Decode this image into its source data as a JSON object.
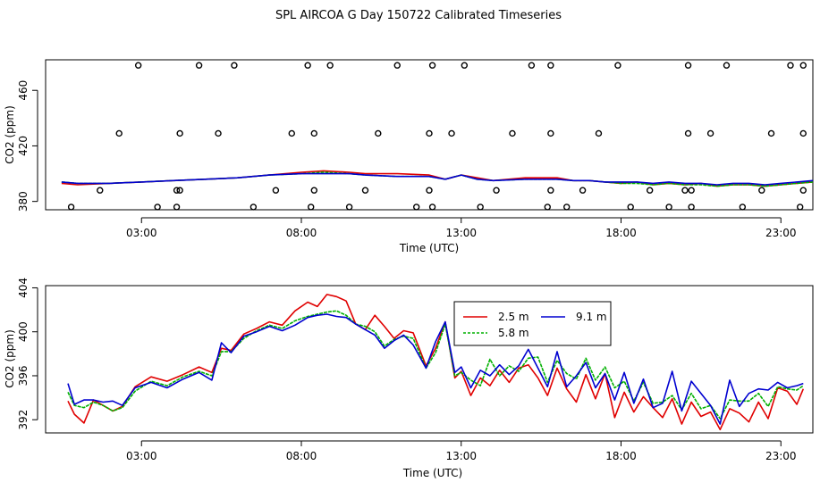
{
  "title": "SPL AIRCOA G  Day 150722  Calibrated Timeseries",
  "chart_data": [
    {
      "type": "line",
      "panel": "top",
      "xlabel": "Time (UTC)",
      "ylabel": "CO2 (ppm)",
      "xlim": [
        0,
        24
      ],
      "ylim": [
        374,
        482
      ],
      "xticks": [
        3,
        8,
        13,
        18,
        23
      ],
      "xtick_labels": [
        "03:00",
        "08:00",
        "13:00",
        "18:00",
        "23:00"
      ],
      "yticks": [
        380,
        420,
        460
      ],
      "ytick_labels": [
        "380",
        "420",
        "460"
      ],
      "series": [
        {
          "color": "#e00000",
          "x": [
            0.5,
            1,
            2,
            3,
            4,
            5,
            6,
            7,
            8,
            8.7,
            9.5,
            10,
            11,
            12,
            12.5,
            13,
            13.5,
            14,
            15,
            16,
            16.5,
            17,
            17.5,
            18,
            18.5,
            19,
            19.5,
            20,
            20.5,
            21,
            21.5,
            22,
            22.5,
            23,
            23.5,
            24
          ],
          "y": [
            393,
            392,
            393,
            394,
            395,
            396,
            397,
            399,
            401,
            402,
            401,
            400,
            400,
            399,
            396,
            399,
            397,
            395,
            397,
            397,
            395,
            395,
            394,
            393,
            394,
            392,
            393,
            392,
            393,
            391,
            392,
            392,
            391,
            392,
            393,
            394
          ]
        },
        {
          "color": "#00b000",
          "x": [
            0.5,
            1,
            2,
            3,
            4,
            5,
            6,
            7,
            8,
            8.7,
            9.5,
            10,
            11,
            12,
            12.5,
            13,
            13.5,
            14,
            15,
            16,
            16.5,
            17,
            17.5,
            18,
            18.5,
            19,
            19.5,
            20,
            20.5,
            21,
            21.5,
            22,
            22.5,
            23,
            23.5,
            24
          ],
          "y": [
            394,
            393,
            393,
            394,
            395,
            396,
            397,
            399,
            400,
            401,
            400,
            399,
            398,
            398,
            396,
            399,
            396,
            395,
            396,
            396,
            395,
            395,
            394,
            393,
            393,
            392,
            393,
            392,
            392,
            391,
            392,
            392,
            391,
            392,
            393,
            394
          ]
        },
        {
          "color": "#0000d0",
          "x": [
            0.5,
            1,
            2,
            3,
            4,
            5,
            6,
            7,
            8,
            8.7,
            9.5,
            10,
            11,
            12,
            12.5,
            13,
            13.5,
            14,
            15,
            16,
            16.5,
            17,
            17.5,
            18,
            18.5,
            19,
            19.5,
            20,
            20.5,
            21,
            21.5,
            22,
            22.5,
            23,
            23.5,
            24
          ],
          "y": [
            394,
            393,
            393,
            394,
            395,
            396,
            397,
            399,
            400,
            400,
            400,
            399,
            398,
            398,
            396,
            399,
            396,
            395,
            396,
            396,
            395,
            395,
            394,
            394,
            394,
            393,
            394,
            393,
            393,
            392,
            393,
            393,
            392,
            393,
            394,
            395
          ]
        }
      ],
      "points": {
        "marker": "open-circle",
        "x": [
          0.8,
          1.7,
          2.3,
          2.9,
          3.5,
          4.1,
          4.1,
          4.2,
          4.2,
          4.8,
          5.4,
          5.9,
          6.5,
          7.2,
          7.7,
          8.2,
          8.3,
          8.4,
          8.4,
          8.9,
          9.5,
          10.0,
          10.4,
          11.0,
          11.6,
          12.0,
          12.0,
          12.1,
          12.1,
          12.7,
          13.1,
          13.6,
          14.1,
          14.6,
          15.2,
          15.7,
          15.8,
          15.8,
          15.8,
          16.3,
          16.8,
          17.3,
          17.9,
          18.3,
          18.9,
          19.5,
          20.0,
          20.1,
          20.1,
          20.2,
          20.2,
          20.8,
          21.3,
          21.8,
          22.4,
          22.7,
          23.3,
          23.6,
          23.7,
          23.7,
          23.7
        ],
        "y": [
          376,
          388,
          429,
          478,
          376,
          388,
          376,
          388,
          429,
          478,
          429,
          478,
          376,
          388,
          429,
          478,
          376,
          388,
          429,
          478,
          376,
          388,
          429,
          478,
          376,
          388,
          429,
          478,
          376,
          429,
          478,
          376,
          388,
          429,
          478,
          376,
          388,
          429,
          478,
          376,
          388,
          429,
          478,
          376,
          388,
          376,
          388,
          429,
          478,
          376,
          388,
          429,
          478,
          376,
          388,
          429,
          478,
          376,
          388,
          429,
          478
        ]
      }
    },
    {
      "type": "line",
      "panel": "bottom",
      "xlabel": "Time (UTC)",
      "ylabel": "CO2 (ppm)",
      "xlim": [
        0,
        24
      ],
      "ylim": [
        390.8,
        404.2
      ],
      "xticks": [
        3,
        8,
        13,
        18,
        23
      ],
      "xtick_labels": [
        "03:00",
        "08:00",
        "13:00",
        "18:00",
        "23:00"
      ],
      "yticks": [
        392,
        396,
        400,
        404
      ],
      "ytick_labels": [
        "392",
        "396",
        "400",
        "404"
      ],
      "legend": {
        "placement": "top-center"
      },
      "series": [
        {
          "name": "2.5 m",
          "color": "#e00000",
          "x": [
            0.7,
            0.9,
            1.2,
            1.5,
            1.8,
            2.1,
            2.4,
            2.8,
            3.3,
            3.8,
            4.3,
            4.8,
            5.2,
            5.5,
            5.8,
            6.2,
            6.6,
            7.0,
            7.4,
            7.8,
            8.2,
            8.5,
            8.8,
            9.1,
            9.4,
            9.7,
            10.0,
            10.3,
            10.6,
            10.9,
            11.2,
            11.5,
            11.9,
            12.2,
            12.5,
            12.8,
            13.0,
            13.3,
            13.6,
            13.9,
            14.2,
            14.5,
            14.8,
            15.1,
            15.4,
            15.7,
            16.0,
            16.3,
            16.6,
            16.9,
            17.2,
            17.5,
            17.8,
            18.1,
            18.4,
            18.7,
            19.0,
            19.3,
            19.6,
            19.9,
            20.2,
            20.5,
            20.8,
            21.1,
            21.4,
            21.7,
            22.0,
            22.3,
            22.6,
            22.9,
            23.2,
            23.5,
            23.7
          ],
          "y": [
            393.7,
            392.5,
            391.7,
            393.8,
            393.3,
            392.8,
            393.2,
            395.0,
            395.9,
            395.5,
            396.1,
            396.8,
            396.3,
            398.5,
            398.3,
            399.8,
            400.3,
            400.9,
            400.6,
            401.9,
            402.7,
            402.3,
            403.4,
            403.2,
            402.8,
            400.7,
            400.2,
            401.5,
            400.5,
            399.4,
            400.1,
            399.9,
            396.9,
            398.5,
            400.9,
            395.8,
            396.4,
            394.2,
            395.8,
            395.1,
            396.5,
            395.4,
            396.7,
            397.0,
            395.8,
            394.2,
            396.7,
            394.8,
            393.6,
            396.1,
            393.9,
            396.2,
            392.2,
            394.5,
            392.7,
            394.1,
            393.1,
            392.2,
            393.9,
            391.6,
            393.6,
            392.3,
            392.7,
            391.1,
            393.0,
            392.6,
            391.8,
            393.6,
            392.1,
            394.9,
            394.6,
            393.4,
            394.8
          ]
        },
        {
          "name": "5.8 m",
          "color": "#00b000",
          "x": [
            0.7,
            0.9,
            1.2,
            1.5,
            1.8,
            2.1,
            2.4,
            2.8,
            3.3,
            3.8,
            4.3,
            4.8,
            5.2,
            5.5,
            5.8,
            6.2,
            6.6,
            7.0,
            7.4,
            7.8,
            8.2,
            8.5,
            8.8,
            9.1,
            9.4,
            9.7,
            10.0,
            10.3,
            10.6,
            10.9,
            11.2,
            11.5,
            11.9,
            12.2,
            12.5,
            12.8,
            13.0,
            13.3,
            13.6,
            13.9,
            14.2,
            14.5,
            14.8,
            15.1,
            15.4,
            15.7,
            16.0,
            16.3,
            16.6,
            16.9,
            17.2,
            17.5,
            17.8,
            18.1,
            18.4,
            18.7,
            19.0,
            19.3,
            19.6,
            19.9,
            20.2,
            20.5,
            20.8,
            21.1,
            21.4,
            21.7,
            22.0,
            22.3,
            22.6,
            22.9,
            23.2,
            23.5,
            23.7
          ],
          "y": [
            394.5,
            393.3,
            393.1,
            393.6,
            393.3,
            392.8,
            393.1,
            394.6,
            395.5,
            395.1,
            395.9,
            396.4,
            396.0,
            398.2,
            398.2,
            399.4,
            400.1,
            400.6,
            400.3,
            401.0,
            401.4,
            401.6,
            401.8,
            401.9,
            401.5,
            400.7,
            400.5,
            400.0,
            398.7,
            399.3,
            399.6,
            399.4,
            396.7,
            398.1,
            400.7,
            396.0,
            396.3,
            395.6,
            395.1,
            397.5,
            396.0,
            396.9,
            396.4,
            397.6,
            397.7,
            395.4,
            397.4,
            396.2,
            395.7,
            397.6,
            395.6,
            396.8,
            394.9,
            395.5,
            393.7,
            395.4,
            393.5,
            393.6,
            394.2,
            392.9,
            394.4,
            393.0,
            393.3,
            392.1,
            393.8,
            393.7,
            393.7,
            394.4,
            393.2,
            395.0,
            394.8,
            394.7,
            395.1
          ]
        },
        {
          "name": "9.1 m",
          "color": "#0000d0",
          "x": [
            0.7,
            0.9,
            1.2,
            1.5,
            1.8,
            2.1,
            2.4,
            2.8,
            3.3,
            3.8,
            4.3,
            4.8,
            5.2,
            5.5,
            5.8,
            6.2,
            6.6,
            7.0,
            7.4,
            7.8,
            8.2,
            8.5,
            8.8,
            9.1,
            9.4,
            9.7,
            10.0,
            10.3,
            10.6,
            10.9,
            11.2,
            11.5,
            11.9,
            12.2,
            12.5,
            12.8,
            13.0,
            13.3,
            13.6,
            13.9,
            14.2,
            14.5,
            14.8,
            15.1,
            15.4,
            15.7,
            16.0,
            16.3,
            16.6,
            16.9,
            17.2,
            17.5,
            17.8,
            18.1,
            18.4,
            18.7,
            19.0,
            19.3,
            19.6,
            19.9,
            20.2,
            20.5,
            20.8,
            21.1,
            21.4,
            21.7,
            22.0,
            22.3,
            22.6,
            22.9,
            23.2,
            23.5,
            23.7
          ],
          "y": [
            395.3,
            393.4,
            393.8,
            393.8,
            393.6,
            393.7,
            393.3,
            394.9,
            395.4,
            394.9,
            395.7,
            396.3,
            395.6,
            399.0,
            398.1,
            399.6,
            400.0,
            400.5,
            400.1,
            400.6,
            401.3,
            401.5,
            401.6,
            401.4,
            401.3,
            400.7,
            400.2,
            399.7,
            398.5,
            399.2,
            399.7,
            398.8,
            396.7,
            399.1,
            400.9,
            396.3,
            396.8,
            394.9,
            396.5,
            396.0,
            397.0,
            396.1,
            396.9,
            398.4,
            396.7,
            395.0,
            398.2,
            395.0,
            396.0,
            397.2,
            394.9,
            396.2,
            393.8,
            396.3,
            393.5,
            395.7,
            393.1,
            393.5,
            396.4,
            392.8,
            395.5,
            394.4,
            393.3,
            391.6,
            395.6,
            393.2,
            394.4,
            394.8,
            394.7,
            395.4,
            394.9,
            395.1,
            395.3
          ]
        }
      ]
    }
  ]
}
